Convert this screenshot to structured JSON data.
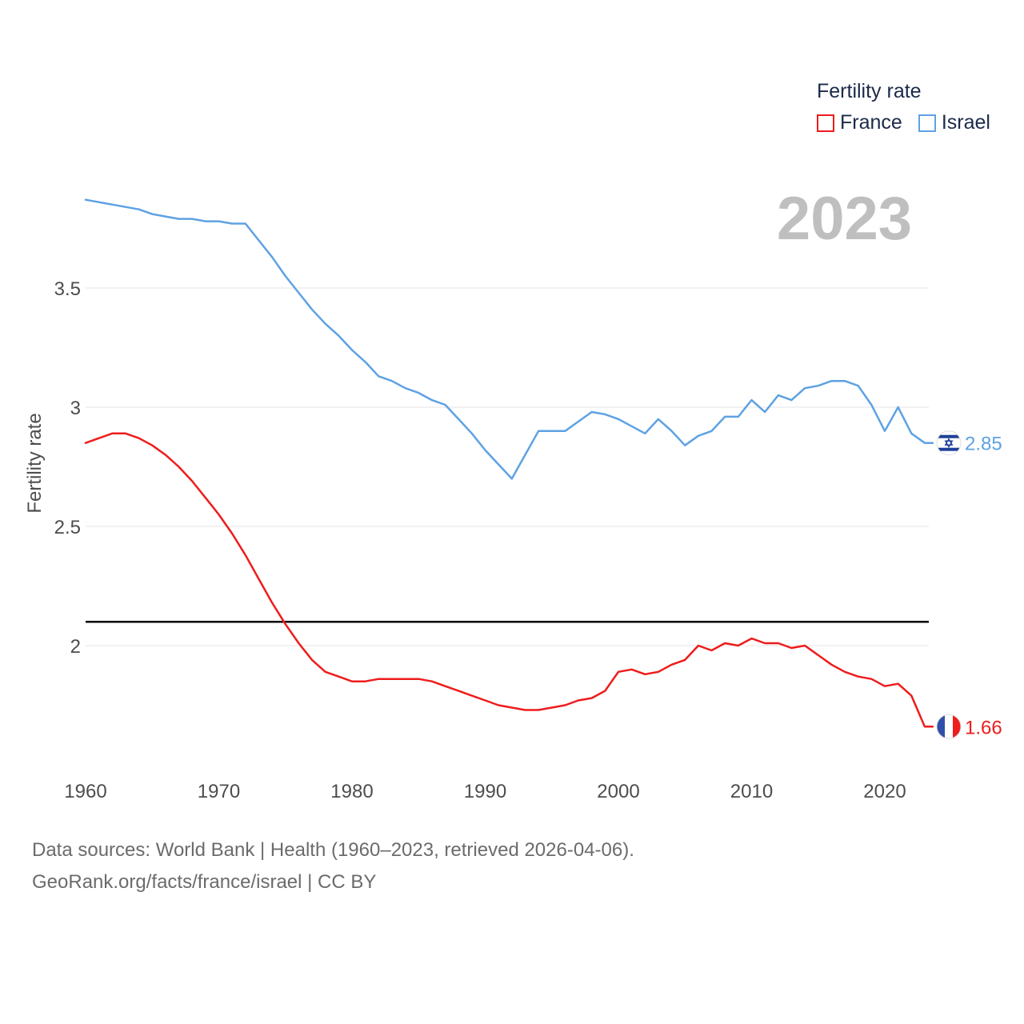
{
  "legend": {
    "title": "Fertility rate"
  },
  "year_label": "2023",
  "footer": {
    "line1": "Data sources: World Bank | Health (1960–2023, retrieved 2026-04-06).",
    "line2": "GeoRank.org/facts/france/israel | CC BY"
  },
  "colors": {
    "france": "#ee1c1c",
    "israel": "#5ea2e3",
    "reference_line": "#000000",
    "grid": "#e6e6e6"
  },
  "chart_data": {
    "type": "line",
    "title": "",
    "xlabel": "",
    "ylabel": "Fertility rate",
    "xlim": [
      1960,
      2023
    ],
    "ylim": [
      1.5,
      3.9
    ],
    "x_ticks": [
      1960,
      1970,
      1980,
      1990,
      2000,
      2010,
      2020
    ],
    "x_tick_labels": [
      "1960",
      "1970",
      "1980",
      "1990",
      "2000",
      "2010",
      "2020"
    ],
    "y_ticks": [
      2,
      2.5,
      3,
      3.5
    ],
    "y_tick_labels": [
      "2",
      "2.5",
      "3",
      "3.5"
    ],
    "reference_line": {
      "y": 2.1
    },
    "x": [
      1960,
      1961,
      1962,
      1963,
      1964,
      1965,
      1966,
      1967,
      1968,
      1969,
      1970,
      1971,
      1972,
      1973,
      1974,
      1975,
      1976,
      1977,
      1978,
      1979,
      1980,
      1981,
      1982,
      1983,
      1984,
      1985,
      1986,
      1987,
      1988,
      1989,
      1990,
      1991,
      1992,
      1993,
      1994,
      1995,
      1996,
      1997,
      1998,
      1999,
      2000,
      2001,
      2002,
      2003,
      2004,
      2005,
      2006,
      2007,
      2008,
      2009,
      2010,
      2011,
      2012,
      2013,
      2014,
      2015,
      2016,
      2017,
      2018,
      2019,
      2020,
      2021,
      2022,
      2023
    ],
    "series": [
      {
        "name": "France",
        "color": "#ee1c1c",
        "flag": "france-flag",
        "end_label": "1.66",
        "values": [
          2.85,
          2.87,
          2.89,
          2.89,
          2.87,
          2.84,
          2.8,
          2.75,
          2.69,
          2.62,
          2.55,
          2.47,
          2.38,
          2.28,
          2.18,
          2.09,
          2.01,
          1.94,
          1.89,
          1.87,
          1.85,
          1.85,
          1.86,
          1.86,
          1.86,
          1.86,
          1.85,
          1.83,
          1.81,
          1.79,
          1.77,
          1.75,
          1.74,
          1.73,
          1.73,
          1.74,
          1.75,
          1.77,
          1.78,
          1.81,
          1.89,
          1.9,
          1.88,
          1.89,
          1.92,
          1.94,
          2.0,
          1.98,
          2.01,
          2.0,
          2.03,
          2.01,
          2.01,
          1.99,
          2.0,
          1.96,
          1.92,
          1.89,
          1.87,
          1.86,
          1.83,
          1.84,
          1.79,
          1.66
        ]
      },
      {
        "name": "Israel",
        "color": "#5ea2e3",
        "flag": "israel-flag",
        "end_label": "2.85",
        "values": [
          3.87,
          3.86,
          3.85,
          3.84,
          3.83,
          3.81,
          3.8,
          3.79,
          3.79,
          3.78,
          3.78,
          3.77,
          3.77,
          3.7,
          3.63,
          3.55,
          3.48,
          3.41,
          3.35,
          3.3,
          3.24,
          3.19,
          3.13,
          3.11,
          3.08,
          3.06,
          3.03,
          3.01,
          2.95,
          2.89,
          2.82,
          2.76,
          2.7,
          2.8,
          2.9,
          2.9,
          2.9,
          2.94,
          2.98,
          2.97,
          2.95,
          2.92,
          2.89,
          2.95,
          2.9,
          2.84,
          2.88,
          2.9,
          2.96,
          2.96,
          3.03,
          2.98,
          3.05,
          3.03,
          3.08,
          3.09,
          3.11,
          3.11,
          3.09,
          3.01,
          2.9,
          3.0,
          2.89,
          2.85
        ]
      }
    ]
  }
}
